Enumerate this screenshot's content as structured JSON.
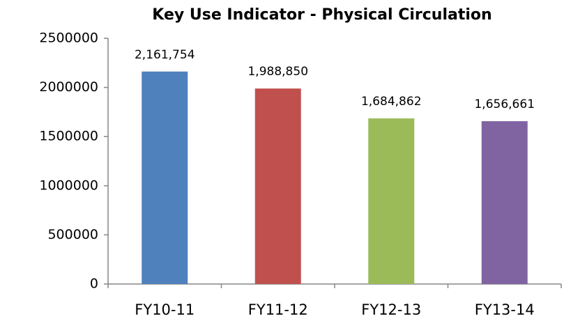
{
  "chart_data": {
    "type": "bar",
    "title": "Key Use Indicator - Physical Circulation",
    "categories": [
      "FY10-11",
      "FY11-12",
      "FY12-13",
      "FY13-14"
    ],
    "values": [
      2161754,
      1988850,
      1684862,
      1656661
    ],
    "value_labels": [
      "2,161,754",
      "1,988,850",
      "1,684,862",
      "1,656,661"
    ],
    "colors": [
      "#4f81bd",
      "#c0504d",
      "#9bbb59",
      "#8064a2"
    ],
    "ylim": [
      0,
      2500000
    ],
    "yticks": [
      0,
      500000,
      1000000,
      1500000,
      2000000,
      2500000
    ],
    "grid": false
  }
}
